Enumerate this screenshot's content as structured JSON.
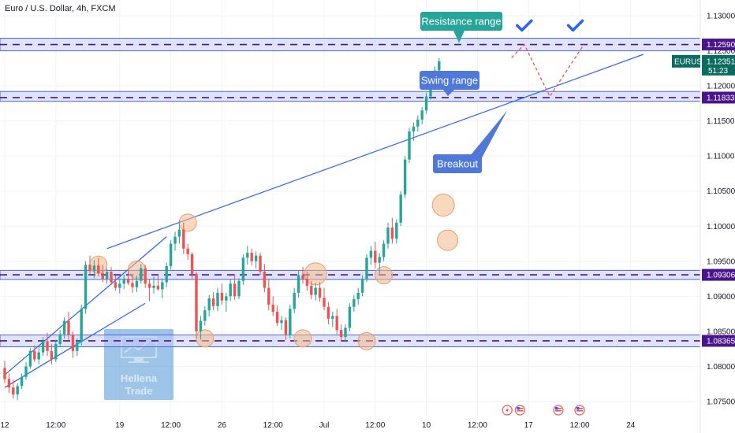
{
  "header": {
    "title": "Euro / U.S. Dollar, 4h, FXCM"
  },
  "colors": {
    "up": "#26a69a",
    "down": "#ef5350",
    "trend": "#2962ff",
    "zone_fill": "#c5cdf6",
    "zone_border": "#4f63d9",
    "zone_dash": "#4a148c",
    "annotation": "#4f78d9",
    "resistance_label": "#26a69a",
    "zone_tag": "#4a148c",
    "symbol_tag": "#0a6b5f",
    "circle": "#f3b98a",
    "projection": "#ef5350",
    "check": "#2962ff"
  },
  "chart_data": {
    "type": "candlestick",
    "symbol": "EURUSD",
    "timeframe": "4h",
    "current_price": "1.12351",
    "countdown": "51:23",
    "ylim": [
      1.075,
      1.13
    ],
    "y_ticks": [
      "1.13000",
      "1.12500",
      "1.12000",
      "1.11500",
      "1.11000",
      "1.10500",
      "1.10000",
      "1.09500",
      "1.09000",
      "1.08500",
      "1.08000",
      "1.07500"
    ],
    "x_ticks": [
      {
        "label": "12",
        "bar": 0
      },
      {
        "label": "12:00",
        "bar": 12
      },
      {
        "label": "19",
        "bar": 27
      },
      {
        "label": "12:00",
        "bar": 39
      },
      {
        "label": "26",
        "bar": 51
      },
      {
        "label": "12:00",
        "bar": 63
      },
      {
        "label": "Jul",
        "bar": 75
      },
      {
        "label": "12:00",
        "bar": 87
      },
      {
        "label": "10",
        "bar": 99
      },
      {
        "label": "12:00",
        "bar": 111
      },
      {
        "label": "17",
        "bar": 123
      },
      {
        "label": "12:00",
        "bar": 135
      },
      {
        "label": "24",
        "bar": 147
      }
    ],
    "zones": [
      {
        "low": 1.125,
        "high": 1.1268,
        "mid": 1.1259,
        "label": "1.12590"
      },
      {
        "low": 1.1178,
        "high": 1.1192,
        "mid": 1.11833,
        "label": "1.11833"
      },
      {
        "low": 1.0924,
        "high": 1.0937,
        "mid": 1.09306,
        "label": "1.09306"
      },
      {
        "low": 1.0828,
        "high": 1.0845,
        "mid": 1.08365,
        "label": "1.08365"
      }
    ],
    "trendlines": [
      {
        "x1": 0,
        "y1": 1.0788,
        "x2": 38,
        "y2": 1.0985
      },
      {
        "x1": 0,
        "y1": 1.077,
        "x2": 33,
        "y2": 1.089
      },
      {
        "x1": 24,
        "y1": 1.0968,
        "x2": 150,
        "y2": 1.1245
      }
    ],
    "ohlc": [
      [
        1.0798,
        1.0808,
        1.0776,
        1.0782
      ],
      [
        1.0782,
        1.079,
        1.0762,
        1.077
      ],
      [
        1.077,
        1.0781,
        1.0754,
        1.076
      ],
      [
        1.076,
        1.0776,
        1.0752,
        1.0772
      ],
      [
        1.0772,
        1.079,
        1.0768,
        1.0785
      ],
      [
        1.0785,
        1.0806,
        1.0781,
        1.08
      ],
      [
        1.08,
        1.0826,
        1.0797,
        1.0822
      ],
      [
        1.0822,
        1.083,
        1.0806,
        1.081
      ],
      [
        1.081,
        1.0828,
        1.0803,
        1.082
      ],
      [
        1.082,
        1.0842,
        1.0815,
        1.0836
      ],
      [
        1.0836,
        1.0848,
        1.0815,
        1.0822
      ],
      [
        1.0822,
        1.0832,
        1.0803,
        1.081
      ],
      [
        1.081,
        1.0838,
        1.0806,
        1.0832
      ],
      [
        1.0832,
        1.0852,
        1.0828,
        1.0846
      ],
      [
        1.0846,
        1.087,
        1.084,
        1.0865
      ],
      [
        1.0865,
        1.0878,
        1.0838,
        1.0845
      ],
      [
        1.0845,
        1.085,
        1.0812,
        1.0822
      ],
      [
        1.0822,
        1.084,
        1.0815,
        1.0835
      ],
      [
        1.0835,
        1.0888,
        1.083,
        1.0882
      ],
      [
        1.0882,
        1.095,
        1.0875,
        1.0945
      ],
      [
        1.0945,
        1.0958,
        1.093,
        1.0936
      ],
      [
        1.0936,
        1.0952,
        1.0926,
        1.0944
      ],
      [
        1.0944,
        1.0955,
        1.0928,
        1.0933
      ],
      [
        1.0933,
        1.0945,
        1.092,
        1.0925
      ],
      [
        1.0925,
        1.094,
        1.0918,
        1.0935
      ],
      [
        1.0935,
        1.0942,
        1.0916,
        1.092
      ],
      [
        1.092,
        1.093,
        1.0908,
        1.0912
      ],
      [
        1.0912,
        1.0926,
        1.0904,
        1.0918
      ],
      [
        1.0918,
        1.0931,
        1.091,
        1.0925
      ],
      [
        1.0925,
        1.0938,
        1.0916,
        1.0919
      ],
      [
        1.0919,
        1.093,
        1.0905,
        1.0913
      ],
      [
        1.0913,
        1.0929,
        1.0906,
        1.0922
      ],
      [
        1.0922,
        1.0946,
        1.0918,
        1.094
      ],
      [
        1.094,
        1.0945,
        1.0912,
        1.0918
      ],
      [
        1.0918,
        1.0925,
        1.0893,
        1.0912
      ],
      [
        1.0912,
        1.0928,
        1.0904,
        1.0915
      ],
      [
        1.0915,
        1.093,
        1.0908,
        1.091
      ],
      [
        1.091,
        1.0925,
        1.0897,
        1.092
      ],
      [
        1.092,
        1.0948,
        1.0913,
        1.0943
      ],
      [
        1.0943,
        1.098,
        1.0938,
        1.0975
      ],
      [
        1.0975,
        1.0992,
        1.0965,
        1.0985
      ],
      [
        1.0985,
        1.1008,
        1.0975,
        1.0995
      ],
      [
        1.0995,
        1.1005,
        1.096,
        1.0968
      ],
      [
        1.0968,
        1.0975,
        1.0952,
        1.096
      ],
      [
        1.096,
        1.0963,
        1.0925,
        1.0932
      ],
      [
        1.0932,
        1.0935,
        1.084,
        1.085
      ],
      [
        1.085,
        1.0872,
        1.0838,
        1.0865
      ],
      [
        1.0865,
        1.0886,
        1.0858,
        1.088
      ],
      [
        1.088,
        1.0902,
        1.0871,
        1.0897
      ],
      [
        1.0897,
        1.0906,
        1.088,
        1.0886
      ],
      [
        1.0886,
        1.0912,
        1.0879,
        1.0905
      ],
      [
        1.0905,
        1.0918,
        1.0888,
        1.0894
      ],
      [
        1.0894,
        1.0905,
        1.0878,
        1.09
      ],
      [
        1.09,
        1.0925,
        1.0893,
        1.0918
      ],
      [
        1.0918,
        1.0932,
        1.0895,
        1.09
      ],
      [
        1.09,
        1.0926,
        1.0896,
        1.0922
      ],
      [
        1.0922,
        1.096,
        1.0916,
        1.0955
      ],
      [
        1.0955,
        1.0972,
        1.0945,
        1.0962
      ],
      [
        1.0962,
        1.0968,
        1.0944,
        1.095
      ],
      [
        1.095,
        1.0964,
        1.094,
        1.0958
      ],
      [
        1.0958,
        1.0962,
        1.093,
        1.0935
      ],
      [
        1.0935,
        1.0946,
        1.0906,
        1.0912
      ],
      [
        1.0912,
        1.0924,
        1.088,
        1.0888
      ],
      [
        1.0888,
        1.09,
        1.0872,
        1.0878
      ],
      [
        1.0878,
        1.0887,
        1.0858,
        1.0862
      ],
      [
        1.0862,
        1.0872,
        1.0852,
        1.0866
      ],
      [
        1.0866,
        1.087,
        1.0838,
        1.0845
      ],
      [
        1.0845,
        1.0888,
        1.084,
        1.0882
      ],
      [
        1.0882,
        1.0912,
        1.0876,
        1.0905
      ],
      [
        1.0905,
        1.0936,
        1.0898,
        1.093
      ],
      [
        1.093,
        1.0942,
        1.0918,
        1.0925
      ],
      [
        1.0925,
        1.0935,
        1.0908,
        1.0915
      ],
      [
        1.0915,
        1.0922,
        1.0896,
        1.0902
      ],
      [
        1.0902,
        1.0919,
        1.0894,
        1.0912
      ],
      [
        1.0912,
        1.092,
        1.0892,
        1.0898
      ],
      [
        1.0898,
        1.0912,
        1.088,
        1.0885
      ],
      [
        1.0885,
        1.0892,
        1.086,
        1.0868
      ],
      [
        1.0868,
        1.0878,
        1.0856,
        1.0872
      ],
      [
        1.0872,
        1.0882,
        1.0846,
        1.0852
      ],
      [
        1.0852,
        1.086,
        1.0836,
        1.0842
      ],
      [
        1.0842,
        1.086,
        1.0835,
        1.0855
      ],
      [
        1.0855,
        1.089,
        1.085,
        1.0885
      ],
      [
        1.0885,
        1.0902,
        1.0878,
        1.0896
      ],
      [
        1.0896,
        1.0912,
        1.0888,
        1.0905
      ],
      [
        1.0905,
        1.093,
        1.09,
        1.0925
      ],
      [
        1.0925,
        1.096,
        1.092,
        1.0955
      ],
      [
        1.0955,
        1.0972,
        1.0945,
        1.0965
      ],
      [
        1.0965,
        1.0978,
        1.094,
        1.0948
      ],
      [
        1.0948,
        1.0962,
        1.0932,
        1.0956
      ],
      [
        1.0956,
        1.098,
        1.095,
        1.0975
      ],
      [
        1.0975,
        1.1005,
        1.0968,
        1.0998
      ],
      [
        1.0998,
        1.1012,
        1.0975,
        1.0982
      ],
      [
        1.0982,
        1.101,
        1.0975,
        1.1005
      ],
      [
        1.1005,
        1.105,
        1.1,
        1.1045
      ],
      [
        1.1045,
        1.11,
        1.104,
        1.1095
      ],
      [
        1.1095,
        1.114,
        1.109,
        1.1135
      ],
      [
        1.1135,
        1.1148,
        1.1122,
        1.1142
      ],
      [
        1.1142,
        1.1158,
        1.1135,
        1.1152
      ],
      [
        1.1152,
        1.117,
        1.1145,
        1.1165
      ],
      [
        1.1165,
        1.119,
        1.116,
        1.1185
      ],
      [
        1.1185,
        1.122,
        1.118,
        1.1215
      ],
      [
        1.1215,
        1.1228,
        1.1205,
        1.1222
      ],
      [
        1.1222,
        1.124,
        1.1215,
        1.1235
      ]
    ],
    "circles": [
      {
        "bar": 22,
        "price": 1.0945
      },
      {
        "bar": 31,
        "price": 1.0938
      },
      {
        "bar": 43,
        "price": 1.1005
      },
      {
        "bar": 47,
        "price": 1.084
      },
      {
        "bar": 70,
        "price": 1.084
      },
      {
        "bar": 73,
        "price": 1.0932
      },
      {
        "bar": 85,
        "price": 1.0836
      },
      {
        "bar": 89,
        "price": 1.093
      },
      {
        "bar": 103,
        "price": 1.103
      },
      {
        "bar": 104,
        "price": 1.098
      }
    ],
    "projection": [
      {
        "bar": 119,
        "price": 1.124
      },
      {
        "bar": 122,
        "price": 1.1259
      },
      {
        "bar": 128,
        "price": 1.1185
      },
      {
        "bar": 136,
        "price": 1.1259
      }
    ],
    "checkmarks": [
      {
        "bar": 122,
        "price": 1.1285
      },
      {
        "bar": 134,
        "price": 1.1285
      }
    ],
    "annotations": {
      "resistance": "Resistance range",
      "swing": "Swing range",
      "breakout": "Breakout"
    },
    "event_icons": [
      {
        "bar": 118,
        "kind": "bolt"
      },
      {
        "bar": 121,
        "kind": "flag"
      },
      {
        "bar": 130,
        "kind": "flag"
      },
      {
        "bar": 135,
        "kind": "flag"
      }
    ]
  },
  "watermark": {
    "line1": "Hellena",
    "line2": "Trade"
  }
}
